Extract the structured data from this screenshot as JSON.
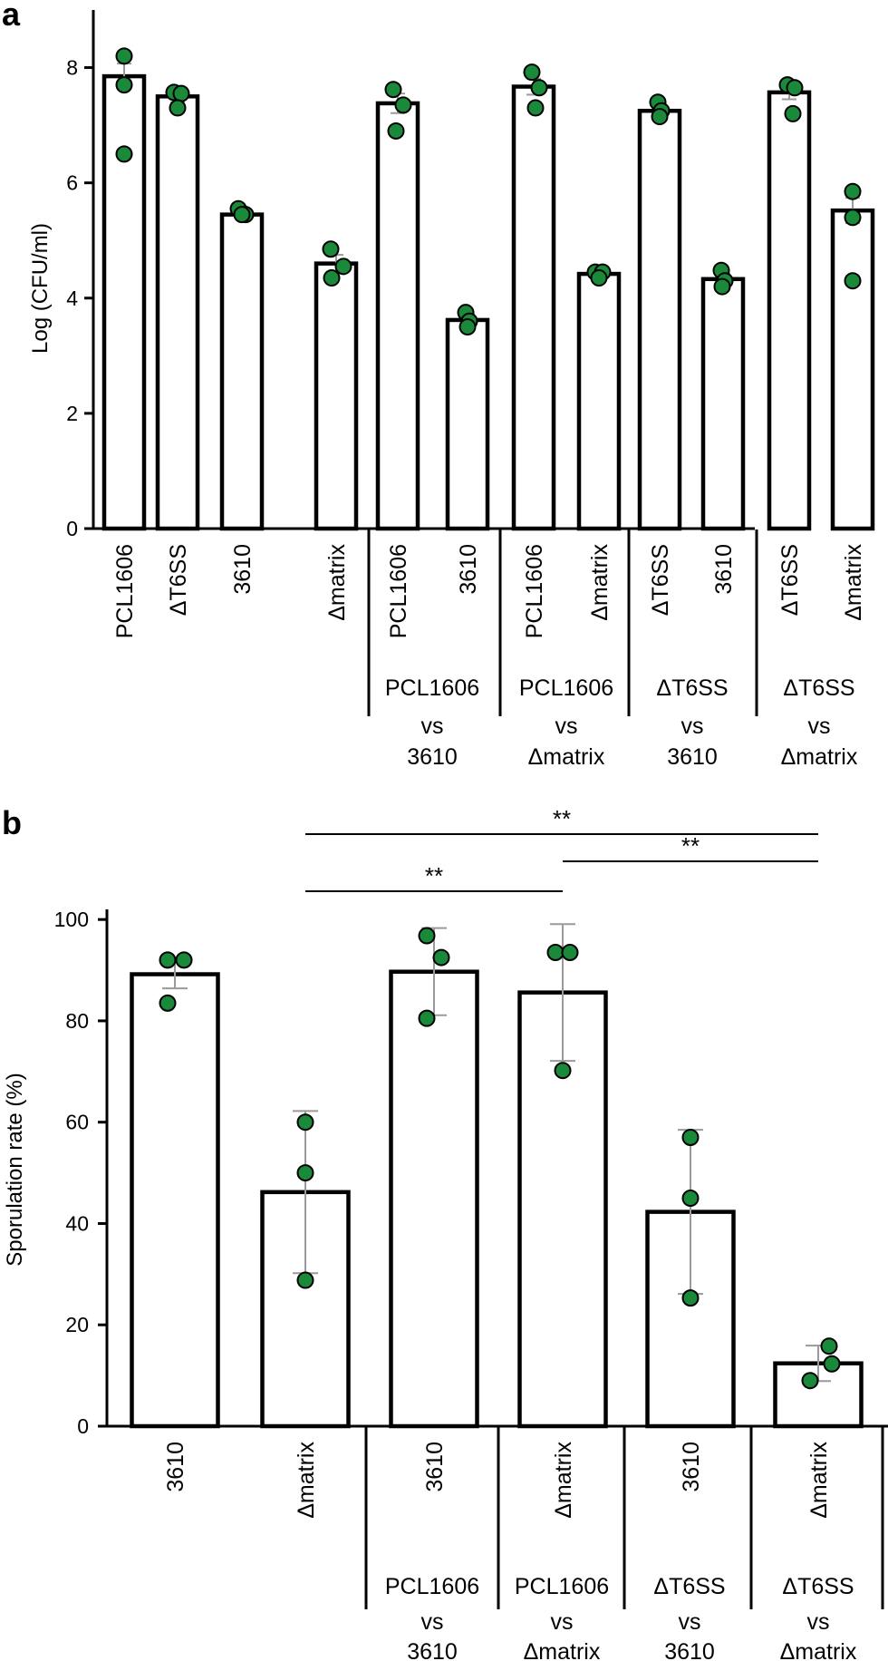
{
  "colors": {
    "bar_fill": "#ffffff",
    "bar_stroke": "#000000",
    "point_fill": "#1a8a3a",
    "point_stroke": "#000000",
    "errorbar": "#9a9a9a"
  },
  "chart_data": [
    {
      "panel": "a",
      "type": "bar",
      "title": "",
      "xlabel": "",
      "ylabel": "Log (CFU/ml)",
      "ylim": [
        0,
        9
      ],
      "yticks": [
        "0",
        "2",
        "4",
        "6",
        "8"
      ],
      "ytick_values": [
        0,
        2,
        4,
        6,
        8
      ],
      "categories": [
        "PCL1606",
        "ΔT6SS",
        "3610",
        "Δmatrix",
        "PCL1606",
        "3610",
        "PCL1606",
        "Δmatrix",
        "ΔT6SS",
        "3610",
        "ΔT6SS",
        "Δmatrix"
      ],
      "values": [
        7.85,
        7.5,
        5.45,
        4.6,
        7.38,
        3.62,
        7.67,
        4.42,
        7.25,
        4.33,
        7.57,
        5.52
      ],
      "error": [
        0.22,
        0.1,
        0.06,
        0.15,
        0.17,
        0.1,
        0.14,
        0.05,
        0.1,
        0.1,
        0.12,
        0.22
      ],
      "points": [
        [
          8.2,
          7.7,
          6.5
        ],
        [
          7.57,
          7.55,
          7.3
        ],
        [
          5.55,
          5.45,
          5.45
        ],
        [
          4.85,
          4.55,
          4.35
        ],
        [
          7.62,
          7.35,
          6.9
        ],
        [
          3.75,
          3.6,
          3.5
        ],
        [
          7.92,
          7.65,
          7.3
        ],
        [
          4.45,
          4.45,
          4.35
        ],
        [
          7.4,
          7.25,
          7.15
        ],
        [
          4.48,
          4.3,
          4.2
        ],
        [
          7.7,
          7.65,
          7.2
        ],
        [
          5.85,
          5.4,
          4.3
        ]
      ],
      "groups": [
        {
          "label_lines": [
            "PCL1606",
            "vs",
            "3610"
          ]
        },
        {
          "label_lines": [
            "PCL1606",
            "vs",
            "Δmatrix"
          ]
        },
        {
          "label_lines": [
            "ΔT6SS",
            "vs",
            "3610"
          ]
        },
        {
          "label_lines": [
            "ΔT6SS",
            "vs",
            "Δmatrix"
          ]
        }
      ]
    },
    {
      "panel": "b",
      "type": "bar",
      "title": "",
      "xlabel": "",
      "ylabel": "Sporulation rate (%)",
      "ylim": [
        0,
        102
      ],
      "yticks": [
        "0",
        "20",
        "40",
        "60",
        "80",
        "100"
      ],
      "ytick_values": [
        0,
        20,
        40,
        60,
        80,
        100
      ],
      "categories": [
        "3610",
        "Δmatrix",
        "3610",
        "Δmatrix",
        "3610",
        "Δmatrix"
      ],
      "values": [
        89.2,
        46.2,
        89.7,
        85.6,
        42.3,
        12.4
      ],
      "error": [
        2.8,
        16,
        8.6,
        13.5,
        16.2,
        3.5
      ],
      "points": [
        [
          92,
          92,
          83.5
        ],
        [
          60,
          50,
          28.8
        ],
        [
          96.8,
          92.5,
          80.5
        ],
        [
          93.5,
          93.5,
          70.2
        ],
        [
          57,
          45,
          25.3
        ],
        [
          15.8,
          12.3,
          9
        ]
      ],
      "groups": [
        {
          "label_lines": [
            "PCL1606",
            "vs",
            "3610"
          ]
        },
        {
          "label_lines": [
            "PCL1606",
            "vs",
            "Δmatrix"
          ]
        },
        {
          "label_lines": [
            "ΔT6SS",
            "vs",
            "3610"
          ]
        },
        {
          "label_lines": [
            "ΔT6SS",
            "vs",
            "Δmatrix"
          ]
        }
      ],
      "significance": [
        {
          "from": 1,
          "to": 5,
          "label": "**"
        },
        {
          "from": 3,
          "to": 5,
          "label": "**"
        },
        {
          "from": 1,
          "to": 3,
          "label": "**"
        }
      ]
    }
  ]
}
